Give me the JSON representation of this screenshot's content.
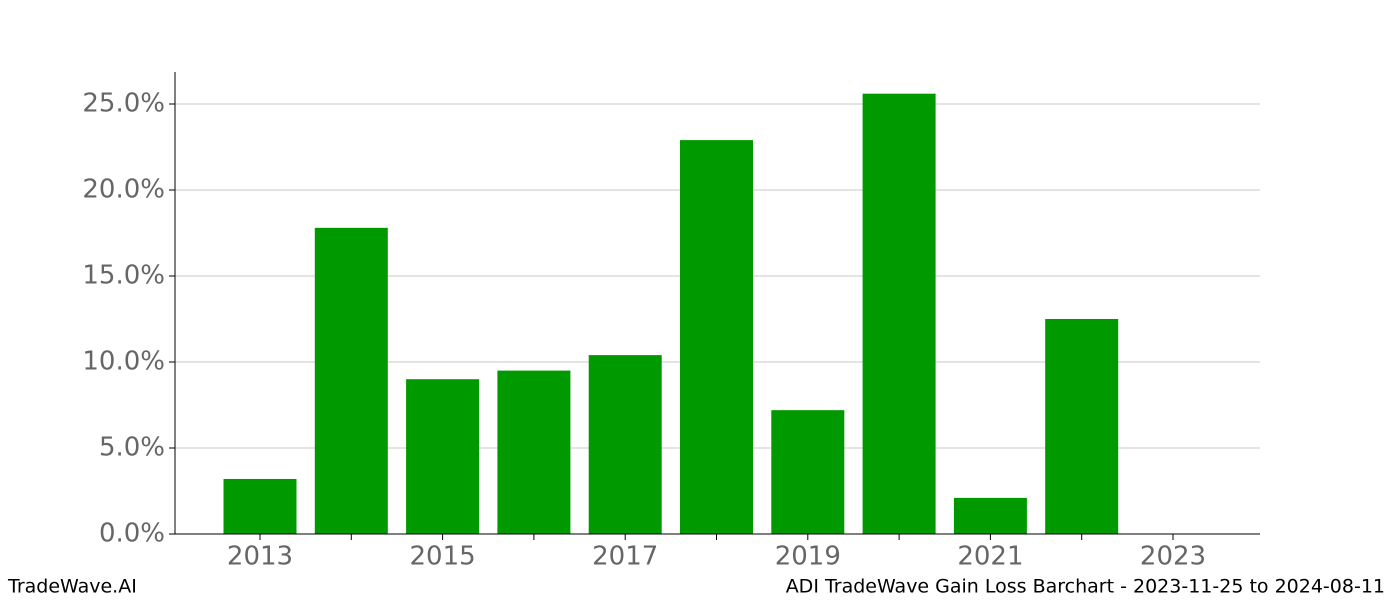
{
  "chart_data": {
    "type": "bar",
    "categories": [
      "2013",
      null,
      "2015",
      null,
      "2017",
      null,
      "2019",
      null,
      "2021",
      null,
      "2023"
    ],
    "values": [
      3.2,
      17.8,
      9.0,
      9.5,
      10.4,
      22.9,
      7.2,
      25.6,
      2.1,
      12.5,
      null
    ],
    "color": "#009900",
    "ylim": [
      0,
      26.86
    ],
    "yticks": [
      {
        "value": 0,
        "label": "0.0%"
      },
      {
        "value": 5,
        "label": "5.0%"
      },
      {
        "value": 10,
        "label": "10.0%"
      },
      {
        "value": 15,
        "label": "15.0%"
      },
      {
        "value": 20,
        "label": "20.0%"
      },
      {
        "value": 25,
        "label": "25.0%"
      }
    ],
    "grid": true
  },
  "footer": {
    "left": "TradeWave.AI",
    "right": "ADI TradeWave Gain Loss Barchart - 2023-11-25 to 2024-08-11"
  }
}
